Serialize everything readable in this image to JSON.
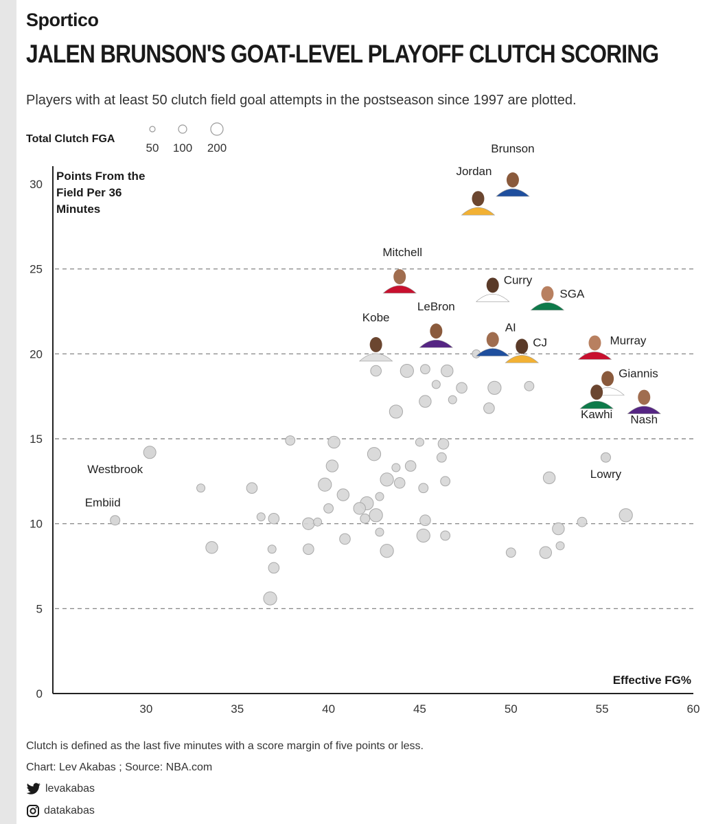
{
  "brand": "Sportico",
  "title": "JALEN BRUNSON'S GOAT-LEVEL PLAYOFF CLUTCH SCORING",
  "subtitle": "Players with at least 50 clutch field goal attempts in the postseason since 1997 are plotted.",
  "legend": {
    "title": "Total Clutch FGA",
    "sizes": [
      {
        "value": 50,
        "label": "50"
      },
      {
        "value": 100,
        "label": "100"
      },
      {
        "value": 200,
        "label": "200"
      }
    ]
  },
  "footer": {
    "note": "Clutch is defined as the last five minutes with a score margin of five points or less.",
    "credit": "Chart: Lev Akabas ; Source: NBA.com",
    "twitter": "levakabas",
    "instagram": "datakabas"
  },
  "colors": {
    "bubble_fill": "#d6d6d6",
    "bubble_stroke": "#a8a8a8",
    "grid": "#777777",
    "text": "#1a1a1a"
  },
  "chart_data": {
    "type": "scatter",
    "xlabel": "Effective FG%",
    "ylabel": "Points From the Field Per 36 Minutes",
    "xlim": [
      25,
      60
    ],
    "ylim": [
      0,
      30
    ],
    "xticks": [
      30,
      35,
      40,
      45,
      50,
      55,
      60
    ],
    "yticks": [
      0,
      5,
      10,
      15,
      20,
      25,
      30
    ],
    "grid": "horizontal dashed",
    "size_encoding": "Total Clutch FGA",
    "labeled_players": [
      {
        "label": "Brunson",
        "x": 50.1,
        "y": 30.0
      },
      {
        "label": "Jordan",
        "x": 48.2,
        "y": 28.9
      },
      {
        "label": "Mitchell",
        "x": 43.9,
        "y": 24.3
      },
      {
        "label": "Curry",
        "x": 49.0,
        "y": 23.8
      },
      {
        "label": "SGA",
        "x": 52.0,
        "y": 23.3
      },
      {
        "label": "LeBron",
        "x": 45.9,
        "y": 21.1
      },
      {
        "label": "Kobe",
        "x": 42.6,
        "y": 20.3
      },
      {
        "label": "AI",
        "x": 49.0,
        "y": 20.6
      },
      {
        "label": "CJ",
        "x": 50.6,
        "y": 20.2
      },
      {
        "label": "Murray",
        "x": 54.6,
        "y": 20.4
      },
      {
        "label": "Giannis",
        "x": 55.3,
        "y": 18.3
      },
      {
        "label": "Kawhi",
        "x": 54.7,
        "y": 17.5
      },
      {
        "label": "Nash",
        "x": 57.3,
        "y": 17.2
      },
      {
        "label": "Westbrook",
        "x": 30.2,
        "y": 14.2
      },
      {
        "label": "Lowry",
        "x": 55.2,
        "y": 13.9
      },
      {
        "label": "Embiid",
        "x": 28.3,
        "y": 10.2
      }
    ],
    "unlabeled_players": [
      {
        "x": 48.1,
        "y": 20.0
      },
      {
        "x": 42.6,
        "y": 19.0
      },
      {
        "x": 44.3,
        "y": 19.0
      },
      {
        "x": 45.3,
        "y": 19.1
      },
      {
        "x": 46.5,
        "y": 19.0
      },
      {
        "x": 45.9,
        "y": 18.2
      },
      {
        "x": 47.3,
        "y": 18.0
      },
      {
        "x": 49.1,
        "y": 18.0
      },
      {
        "x": 51.0,
        "y": 18.1
      },
      {
        "x": 45.3,
        "y": 17.2
      },
      {
        "x": 46.8,
        "y": 17.3
      },
      {
        "x": 48.8,
        "y": 16.8
      },
      {
        "x": 43.7,
        "y": 16.6
      },
      {
        "x": 37.9,
        "y": 14.9
      },
      {
        "x": 40.3,
        "y": 14.8
      },
      {
        "x": 45.0,
        "y": 14.8
      },
      {
        "x": 46.3,
        "y": 14.7
      },
      {
        "x": 42.5,
        "y": 14.1
      },
      {
        "x": 46.2,
        "y": 13.9
      },
      {
        "x": 40.2,
        "y": 13.4
      },
      {
        "x": 43.7,
        "y": 13.3
      },
      {
        "x": 44.5,
        "y": 13.4
      },
      {
        "x": 43.2,
        "y": 12.6
      },
      {
        "x": 46.4,
        "y": 12.5
      },
      {
        "x": 52.1,
        "y": 12.7
      },
      {
        "x": 33.0,
        "y": 12.1
      },
      {
        "x": 35.8,
        "y": 12.1
      },
      {
        "x": 39.8,
        "y": 12.3
      },
      {
        "x": 45.2,
        "y": 12.1
      },
      {
        "x": 40.8,
        "y": 11.7
      },
      {
        "x": 42.8,
        "y": 11.6
      },
      {
        "x": 43.9,
        "y": 12.4
      },
      {
        "x": 42.1,
        "y": 11.2
      },
      {
        "x": 40.0,
        "y": 10.9
      },
      {
        "x": 41.7,
        "y": 10.9
      },
      {
        "x": 36.3,
        "y": 10.4
      },
      {
        "x": 37.0,
        "y": 10.3
      },
      {
        "x": 42.6,
        "y": 10.5
      },
      {
        "x": 42.0,
        "y": 10.3
      },
      {
        "x": 38.9,
        "y": 10.0
      },
      {
        "x": 39.4,
        "y": 10.1
      },
      {
        "x": 45.3,
        "y": 10.2
      },
      {
        "x": 56.3,
        "y": 10.5
      },
      {
        "x": 53.9,
        "y": 10.1
      },
      {
        "x": 52.6,
        "y": 9.7
      },
      {
        "x": 42.8,
        "y": 9.5
      },
      {
        "x": 40.9,
        "y": 9.1
      },
      {
        "x": 45.2,
        "y": 9.3
      },
      {
        "x": 46.4,
        "y": 9.3
      },
      {
        "x": 33.6,
        "y": 8.6
      },
      {
        "x": 36.9,
        "y": 8.5
      },
      {
        "x": 38.9,
        "y": 8.5
      },
      {
        "x": 43.2,
        "y": 8.4
      },
      {
        "x": 50.0,
        "y": 8.3
      },
      {
        "x": 51.9,
        "y": 8.3
      },
      {
        "x": 52.7,
        "y": 8.7
      },
      {
        "x": 37.0,
        "y": 7.4
      },
      {
        "x": 36.8,
        "y": 5.6
      }
    ]
  }
}
